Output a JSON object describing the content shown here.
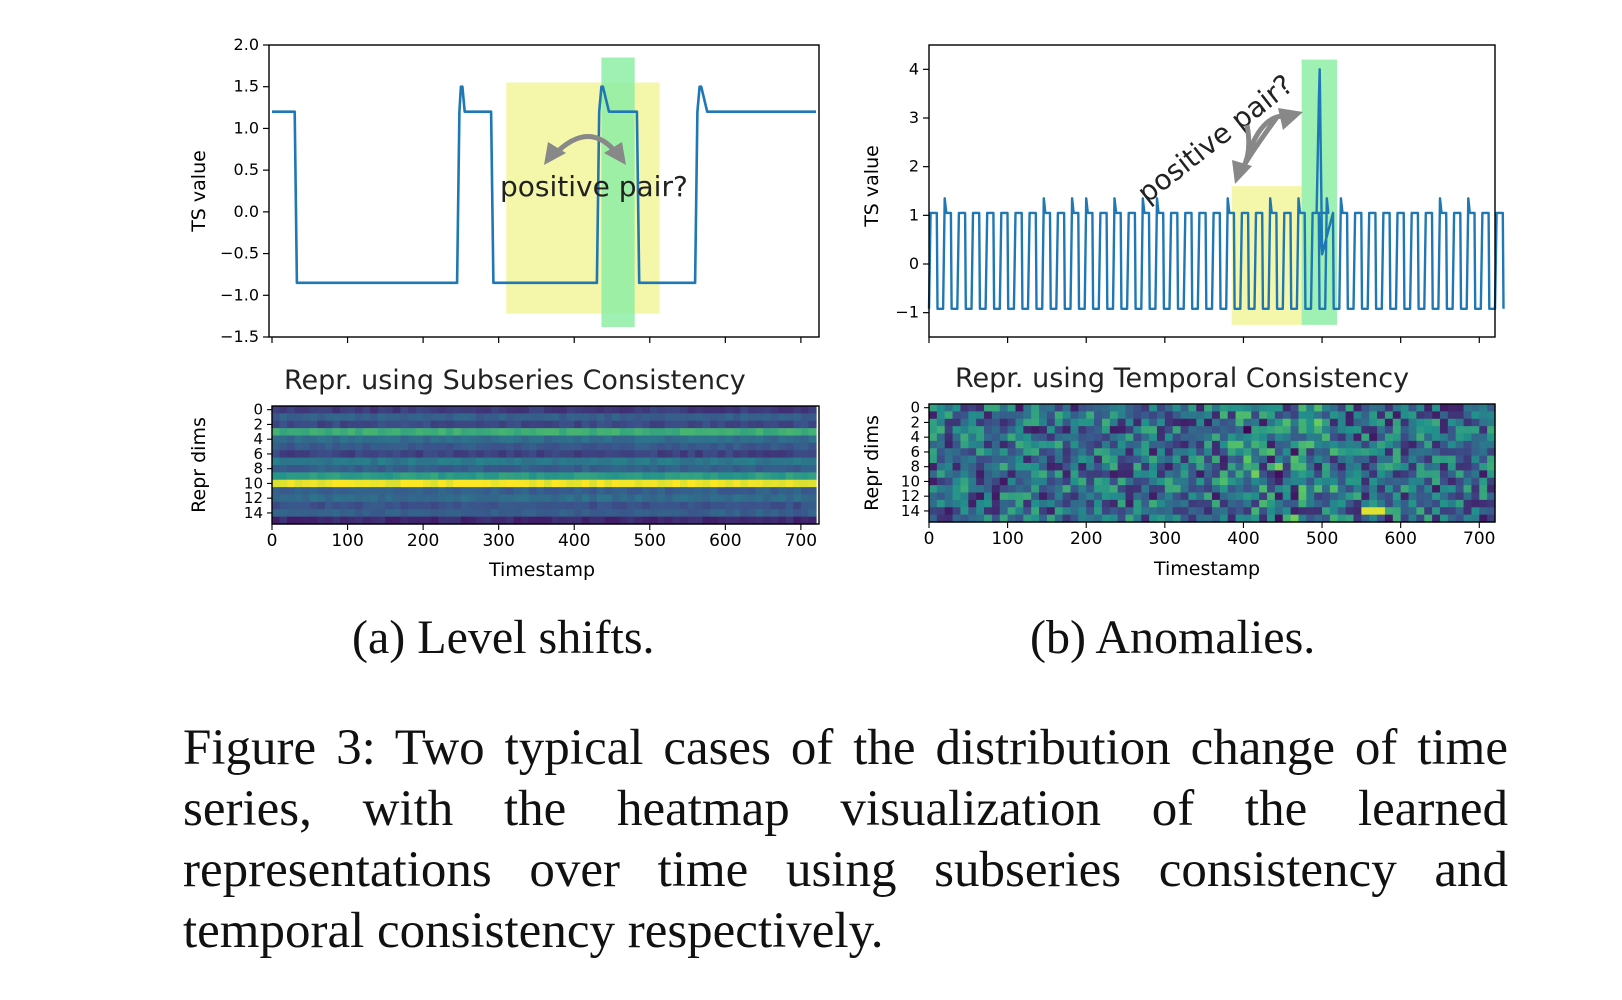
{
  "panels": [
    {
      "id": "a",
      "subcaption": "(a) Level shifts.",
      "annotation": "positive pair?",
      "heatmap_title": "Repr. using Subseries Consistency",
      "line_chart": {
        "type": "line",
        "ylabel": "TS value",
        "xlim": [
          0,
          720
        ],
        "ylim": [
          -1.5,
          2.0
        ],
        "yticks": [
          "2.0",
          "1.5",
          "1.0",
          "0.5",
          "0.0",
          "−0.5",
          "−1.0",
          "−1.5"
        ],
        "ytick_values": [
          2.0,
          1.5,
          1.0,
          0.5,
          0.0,
          -0.5,
          -1.0,
          -1.5
        ],
        "series": [
          {
            "x": [
              0,
              30,
              33,
              36,
              245,
              248,
              250,
              252,
              255,
              260,
              290,
              293,
              296,
              430,
              433,
              436,
              438,
              446,
              448,
              450,
              470,
              483,
              486,
              489,
              560,
              563,
              566,
              568,
              576,
              578,
              580,
              720
            ],
            "y": [
              1.2,
              1.2,
              -0.85,
              -0.85,
              -0.85,
              1.2,
              1.5,
              1.5,
              1.2,
              1.2,
              1.2,
              -0.85,
              -0.85,
              -0.85,
              1.2,
              1.5,
              1.5,
              1.2,
              1.2,
              1.2,
              1.2,
              1.2,
              -0.85,
              -0.85,
              -0.85,
              1.2,
              1.5,
              1.5,
              1.2,
              1.2,
              1.2,
              1.2
            ]
          }
        ],
        "highlights": [
          {
            "color": "#f2f49a",
            "x0": 310,
            "x1": 513,
            "y0": -1.22,
            "y1": 1.55
          },
          {
            "color": "#8eeda6",
            "x0": 436,
            "x1": 480,
            "y0": -1.38,
            "y1": 1.85
          }
        ]
      },
      "heatmap": {
        "type": "heatmap",
        "ylabel": "Repr dims",
        "xlabel": "Timestamp",
        "yticks": [
          "0",
          "2",
          "4",
          "6",
          "8",
          "10",
          "12",
          "14"
        ],
        "xticks": [
          "0",
          "100",
          "200",
          "300",
          "400",
          "500",
          "600",
          "700"
        ],
        "xtick_values": [
          0,
          100,
          200,
          300,
          400,
          500,
          600,
          700
        ],
        "xlim": [
          0,
          720
        ],
        "rows": 16,
        "row_levels": [
          0.18,
          0.3,
          0.22,
          0.62,
          0.35,
          0.28,
          0.2,
          0.4,
          0.3,
          0.55,
          0.98,
          0.3,
          0.35,
          0.25,
          0.3,
          0.12
        ],
        "cmap": "viridis"
      }
    },
    {
      "id": "b",
      "subcaption": "(b) Anomalies.",
      "annotation": "positive pair?",
      "heatmap_title": "Repr. using Temporal Consistency",
      "line_chart": {
        "type": "line",
        "ylabel": "TS value",
        "xlim": [
          0,
          720
        ],
        "ylim": [
          -1.5,
          4.5
        ],
        "yticks": [
          "4",
          "3",
          "2",
          "1",
          "0",
          "−1"
        ],
        "ytick_values": [
          4,
          3,
          2,
          1,
          0,
          -1
        ],
        "period": 18,
        "high": 1.05,
        "low": -0.92,
        "spike_x": 497,
        "spike_height": 4.0,
        "highlights": [
          {
            "color": "#f2f49a",
            "x0": 385,
            "x1": 474,
            "y0": -1.25,
            "y1": 1.6
          },
          {
            "color": "#8eeda6",
            "x0": 474,
            "x1": 519,
            "y0": -1.25,
            "y1": 4.2
          }
        ]
      },
      "heatmap": {
        "type": "heatmap",
        "ylabel": "Repr dims",
        "xlabel": "Timestamp",
        "yticks": [
          "0",
          "2",
          "4",
          "6",
          "8",
          "10",
          "12",
          "14"
        ],
        "xticks": [
          "0",
          "100",
          "200",
          "300",
          "400",
          "500",
          "600",
          "700"
        ],
        "xtick_values": [
          0,
          100,
          200,
          300,
          400,
          500,
          600,
          700
        ],
        "xlim": [
          0,
          720
        ],
        "rows": 16,
        "cmap": "viridis"
      }
    }
  ],
  "caption": "Figure 3: Two typical cases of the distribution change of time series, with the heatmap visualization of the learned representations over time using subseries consistency and temporal consistency respectively."
}
